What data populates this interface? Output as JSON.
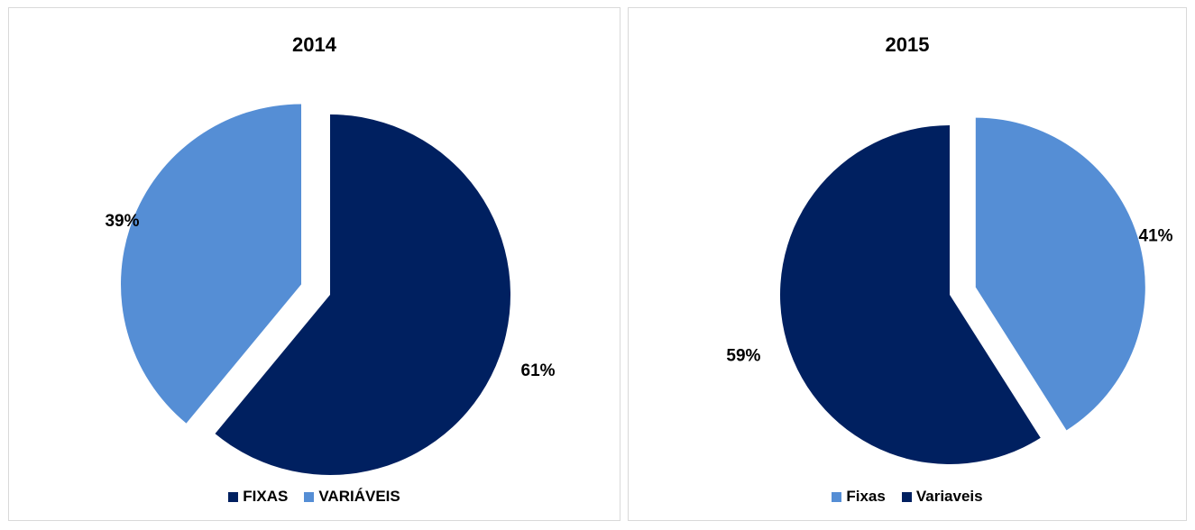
{
  "page_title": "",
  "colors": {
    "dark": "#002060",
    "light": "#558ED5"
  },
  "chart_data": [
    {
      "type": "pie",
      "title": "2014",
      "slices": [
        {
          "label": "FIXAS",
          "value": 61,
          "display": "61%",
          "color": "#002060"
        },
        {
          "label": "VARIÁVEIS",
          "value": 39,
          "display": "39%",
          "color": "#558ED5"
        }
      ],
      "legend": [
        "FIXAS",
        "VARIÁVEIS"
      ],
      "legend_position": "bottom",
      "exploded_slice": "VARIÁVEIS"
    },
    {
      "type": "pie",
      "title": "2015",
      "slices": [
        {
          "label": "Fixas",
          "value": 41,
          "display": "41%",
          "color": "#558ED5"
        },
        {
          "label": "Variaveis",
          "value": 59,
          "display": "59%",
          "color": "#002060"
        }
      ],
      "legend": [
        "Fixas",
        "Variaveis"
      ],
      "legend_position": "bottom",
      "exploded_slice": "Fixas"
    }
  ]
}
